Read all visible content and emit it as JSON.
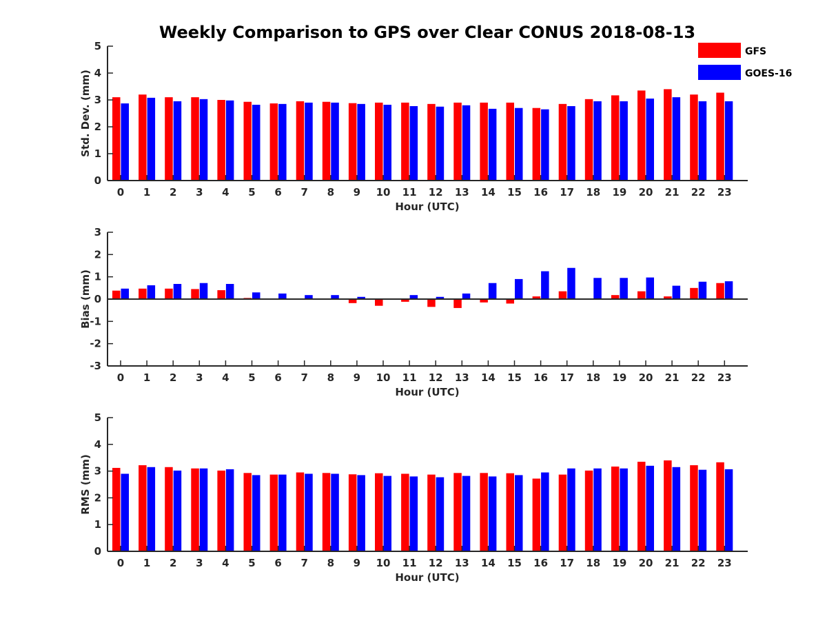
{
  "figure": {
    "title": "Weekly Comparison to GPS over Clear CONUS 2018-08-13",
    "legend": [
      {
        "label": "GFS",
        "color": "#ff0000"
      },
      {
        "label": "GOES-16",
        "color": "#0000ff"
      }
    ]
  },
  "chart_data": [
    {
      "type": "bar",
      "ylabel": "Std. Dev. (mm)",
      "xlabel": "Hour (UTC)",
      "ylim": [
        0,
        5
      ],
      "yticks": [
        0,
        1,
        2,
        3,
        4,
        5
      ],
      "categories": [
        "0",
        "1",
        "2",
        "3",
        "4",
        "5",
        "6",
        "7",
        "8",
        "9",
        "10",
        "11",
        "12",
        "13",
        "14",
        "15",
        "16",
        "17",
        "18",
        "19",
        "20",
        "21",
        "22",
        "23"
      ],
      "series": [
        {
          "name": "GFS",
          "values": [
            3.1,
            3.2,
            3.1,
            3.1,
            3.0,
            2.93,
            2.87,
            2.95,
            2.93,
            2.88,
            2.9,
            2.9,
            2.85,
            2.9,
            2.9,
            2.9,
            2.7,
            2.85,
            3.03,
            3.17,
            3.35,
            3.4,
            3.2,
            3.27
          ]
        },
        {
          "name": "GOES-16",
          "values": [
            2.87,
            3.08,
            2.95,
            3.03,
            2.98,
            2.82,
            2.85,
            2.9,
            2.9,
            2.85,
            2.82,
            2.77,
            2.75,
            2.8,
            2.67,
            2.7,
            2.65,
            2.77,
            2.95,
            2.95,
            3.05,
            3.1,
            2.95,
            2.95
          ]
        }
      ]
    },
    {
      "type": "bar",
      "ylabel": "Bias (mm)",
      "xlabel": "Hour (UTC)",
      "ylim": [
        -3,
        3
      ],
      "yticks": [
        -3,
        -2,
        -1,
        0,
        1,
        2,
        3
      ],
      "zero_line": true,
      "categories": [
        "0",
        "1",
        "2",
        "3",
        "4",
        "5",
        "6",
        "7",
        "8",
        "9",
        "10",
        "11",
        "12",
        "13",
        "14",
        "15",
        "16",
        "17",
        "18",
        "19",
        "20",
        "21",
        "22",
        "23"
      ],
      "series": [
        {
          "name": "GFS",
          "values": [
            0.38,
            0.47,
            0.47,
            0.45,
            0.4,
            0.05,
            0.0,
            0.0,
            0.0,
            -0.18,
            -0.3,
            -0.12,
            -0.35,
            -0.4,
            -0.15,
            -0.2,
            0.12,
            0.35,
            0.0,
            0.18,
            0.35,
            0.12,
            0.5,
            0.72
          ]
        },
        {
          "name": "GOES-16",
          "values": [
            0.47,
            0.62,
            0.68,
            0.72,
            0.68,
            0.3,
            0.25,
            0.18,
            0.18,
            0.1,
            0.0,
            0.18,
            0.1,
            0.25,
            0.72,
            0.9,
            1.25,
            1.4,
            0.95,
            0.95,
            0.97,
            0.6,
            0.78,
            0.8
          ]
        }
      ]
    },
    {
      "type": "bar",
      "ylabel": "RMS (mm)",
      "xlabel": "Hour (UTC)",
      "ylim": [
        0,
        5
      ],
      "yticks": [
        0,
        1,
        2,
        3,
        4,
        5
      ],
      "categories": [
        "0",
        "1",
        "2",
        "3",
        "4",
        "5",
        "6",
        "7",
        "8",
        "9",
        "10",
        "11",
        "12",
        "13",
        "14",
        "15",
        "16",
        "17",
        "18",
        "19",
        "20",
        "21",
        "22",
        "23"
      ],
      "series": [
        {
          "name": "GFS",
          "values": [
            3.12,
            3.22,
            3.15,
            3.1,
            3.02,
            2.93,
            2.87,
            2.95,
            2.93,
            2.88,
            2.92,
            2.9,
            2.87,
            2.93,
            2.93,
            2.92,
            2.72,
            2.87,
            3.02,
            3.17,
            3.35,
            3.4,
            3.22,
            3.33
          ]
        },
        {
          "name": "GOES-16",
          "values": [
            2.9,
            3.15,
            3.02,
            3.1,
            3.07,
            2.85,
            2.87,
            2.9,
            2.9,
            2.85,
            2.82,
            2.8,
            2.77,
            2.82,
            2.8,
            2.85,
            2.95,
            3.1,
            3.1,
            3.1,
            3.2,
            3.15,
            3.05,
            3.07
          ]
        }
      ]
    }
  ]
}
